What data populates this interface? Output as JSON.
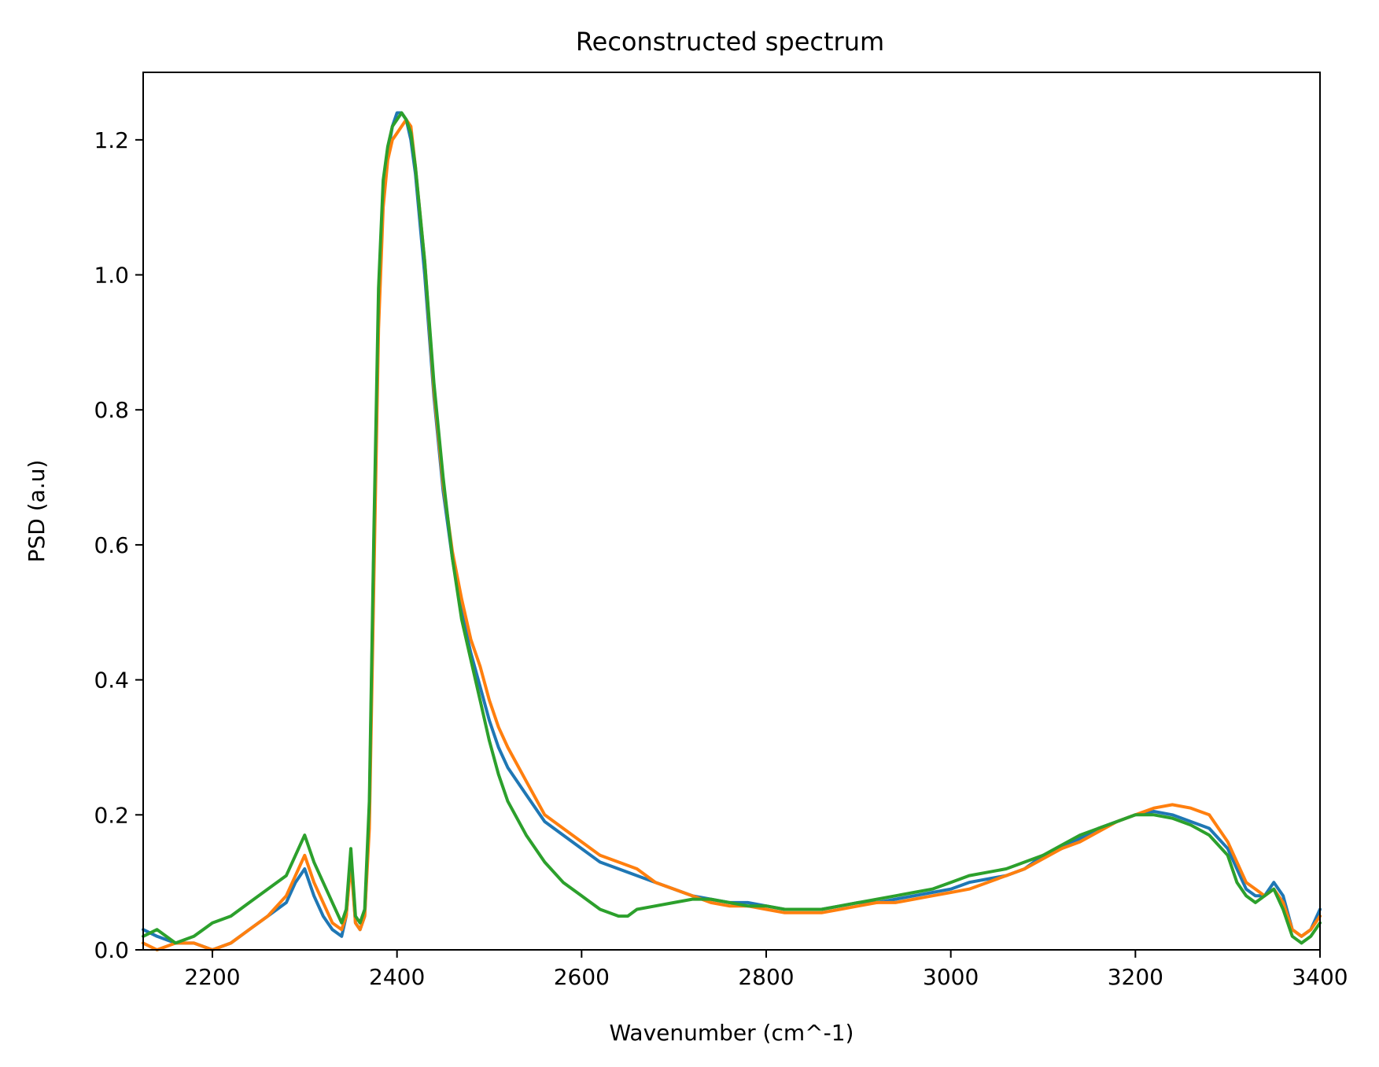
{
  "chart_data": {
    "type": "line",
    "title": "Reconstructed spectrum",
    "xlabel": "Wavenumber (cm^-1)",
    "ylabel": "PSD (a.u)",
    "xlim": [
      2125,
      3400
    ],
    "ylim": [
      0.0,
      1.3
    ],
    "xticks": [
      2200,
      2400,
      2600,
      2800,
      3000,
      3200,
      3400
    ],
    "xtick_labels": [
      "2200",
      "2400",
      "2600",
      "2800",
      "3000",
      "3200",
      "3400"
    ],
    "yticks": [
      0.0,
      0.2,
      0.4,
      0.6,
      0.8,
      1.0,
      1.2
    ],
    "ytick_labels": [
      "0.0",
      "0.2",
      "0.4",
      "0.6",
      "0.8",
      "1.0",
      "1.2"
    ],
    "grid": false,
    "legend": "none",
    "colors": [
      "#1f77b4",
      "#ff7f0e",
      "#2ca02c"
    ],
    "series": [
      {
        "x": [
          2125,
          2140,
          2160,
          2180,
          2200,
          2220,
          2240,
          2260,
          2280,
          2290,
          2300,
          2310,
          2320,
          2330,
          2340,
          2345,
          2350,
          2355,
          2360,
          2365,
          2370,
          2375,
          2380,
          2385,
          2390,
          2395,
          2400,
          2405,
          2410,
          2415,
          2420,
          2430,
          2440,
          2450,
          2460,
          2470,
          2480,
          2490,
          2500,
          2510,
          2520,
          2540,
          2560,
          2580,
          2600,
          2620,
          2640,
          2660,
          2680,
          2700,
          2720,
          2740,
          2760,
          2780,
          2800,
          2820,
          2840,
          2860,
          2880,
          2900,
          2920,
          2940,
          2960,
          2980,
          3000,
          3020,
          3040,
          3060,
          3080,
          3100,
          3120,
          3140,
          3160,
          3180,
          3200,
          3220,
          3240,
          3260,
          3280,
          3300,
          3310,
          3320,
          3330,
          3340,
          3350,
          3360,
          3370,
          3380,
          3390,
          3400
        ],
        "y": [
          0.03,
          0.02,
          0.01,
          0.01,
          0.0,
          0.01,
          0.03,
          0.05,
          0.07,
          0.1,
          0.12,
          0.08,
          0.05,
          0.03,
          0.02,
          0.05,
          0.14,
          0.04,
          0.03,
          0.05,
          0.2,
          0.6,
          0.95,
          1.12,
          1.18,
          1.22,
          1.24,
          1.24,
          1.23,
          1.2,
          1.15,
          1.0,
          0.82,
          0.68,
          0.58,
          0.5,
          0.44,
          0.39,
          0.34,
          0.3,
          0.27,
          0.23,
          0.19,
          0.17,
          0.15,
          0.13,
          0.12,
          0.11,
          0.1,
          0.09,
          0.08,
          0.075,
          0.07,
          0.07,
          0.065,
          0.06,
          0.06,
          0.06,
          0.065,
          0.07,
          0.07,
          0.075,
          0.08,
          0.085,
          0.09,
          0.1,
          0.105,
          0.11,
          0.12,
          0.14,
          0.15,
          0.165,
          0.18,
          0.19,
          0.2,
          0.205,
          0.2,
          0.19,
          0.18,
          0.15,
          0.12,
          0.09,
          0.08,
          0.08,
          0.1,
          0.08,
          0.03,
          0.02,
          0.03,
          0.06
        ]
      },
      {
        "x": [
          2125,
          2140,
          2160,
          2180,
          2200,
          2220,
          2240,
          2260,
          2280,
          2290,
          2300,
          2310,
          2320,
          2330,
          2340,
          2345,
          2350,
          2355,
          2360,
          2365,
          2370,
          2375,
          2380,
          2385,
          2390,
          2395,
          2400,
          2405,
          2410,
          2415,
          2420,
          2430,
          2440,
          2450,
          2460,
          2470,
          2480,
          2490,
          2500,
          2510,
          2520,
          2540,
          2560,
          2580,
          2600,
          2620,
          2640,
          2660,
          2680,
          2700,
          2720,
          2740,
          2760,
          2780,
          2800,
          2820,
          2840,
          2860,
          2880,
          2900,
          2920,
          2940,
          2960,
          2980,
          3000,
          3020,
          3040,
          3060,
          3080,
          3100,
          3120,
          3140,
          3160,
          3180,
          3200,
          3220,
          3240,
          3260,
          3280,
          3300,
          3310,
          3320,
          3330,
          3340,
          3350,
          3360,
          3370,
          3380,
          3390,
          3400
        ],
        "y": [
          0.01,
          0.0,
          0.01,
          0.01,
          0.0,
          0.01,
          0.03,
          0.05,
          0.08,
          0.11,
          0.14,
          0.1,
          0.07,
          0.04,
          0.03,
          0.05,
          0.13,
          0.04,
          0.03,
          0.05,
          0.18,
          0.55,
          0.92,
          1.1,
          1.17,
          1.2,
          1.21,
          1.22,
          1.23,
          1.22,
          1.16,
          1.02,
          0.83,
          0.69,
          0.59,
          0.52,
          0.46,
          0.42,
          0.37,
          0.33,
          0.3,
          0.25,
          0.2,
          0.18,
          0.16,
          0.14,
          0.13,
          0.12,
          0.1,
          0.09,
          0.08,
          0.07,
          0.065,
          0.065,
          0.06,
          0.055,
          0.055,
          0.055,
          0.06,
          0.065,
          0.07,
          0.07,
          0.075,
          0.08,
          0.085,
          0.09,
          0.1,
          0.11,
          0.12,
          0.135,
          0.15,
          0.16,
          0.175,
          0.19,
          0.2,
          0.21,
          0.215,
          0.21,
          0.2,
          0.16,
          0.13,
          0.1,
          0.09,
          0.08,
          0.09,
          0.07,
          0.03,
          0.02,
          0.03,
          0.05
        ]
      },
      {
        "x": [
          2125,
          2140,
          2160,
          2180,
          2200,
          2220,
          2240,
          2260,
          2280,
          2290,
          2300,
          2310,
          2320,
          2330,
          2340,
          2345,
          2350,
          2355,
          2360,
          2365,
          2370,
          2375,
          2380,
          2385,
          2390,
          2395,
          2400,
          2405,
          2410,
          2415,
          2420,
          2430,
          2440,
          2450,
          2460,
          2470,
          2480,
          2490,
          2500,
          2510,
          2520,
          2540,
          2560,
          2580,
          2600,
          2620,
          2640,
          2650,
          2660,
          2680,
          2700,
          2720,
          2740,
          2760,
          2780,
          2800,
          2820,
          2840,
          2860,
          2880,
          2900,
          2920,
          2940,
          2960,
          2980,
          3000,
          3020,
          3040,
          3060,
          3080,
          3100,
          3120,
          3140,
          3160,
          3180,
          3200,
          3220,
          3240,
          3260,
          3280,
          3300,
          3310,
          3320,
          3330,
          3340,
          3350,
          3360,
          3370,
          3380,
          3390,
          3400
        ],
        "y": [
          0.02,
          0.03,
          0.01,
          0.02,
          0.04,
          0.05,
          0.07,
          0.09,
          0.11,
          0.14,
          0.17,
          0.13,
          0.1,
          0.07,
          0.04,
          0.06,
          0.15,
          0.05,
          0.04,
          0.06,
          0.22,
          0.62,
          0.98,
          1.14,
          1.19,
          1.22,
          1.23,
          1.24,
          1.23,
          1.21,
          1.16,
          1.02,
          0.84,
          0.7,
          0.58,
          0.49,
          0.43,
          0.37,
          0.31,
          0.26,
          0.22,
          0.17,
          0.13,
          0.1,
          0.08,
          0.06,
          0.05,
          0.05,
          0.06,
          0.065,
          0.07,
          0.075,
          0.075,
          0.07,
          0.065,
          0.065,
          0.06,
          0.06,
          0.06,
          0.065,
          0.07,
          0.075,
          0.08,
          0.085,
          0.09,
          0.1,
          0.11,
          0.115,
          0.12,
          0.13,
          0.14,
          0.155,
          0.17,
          0.18,
          0.19,
          0.2,
          0.2,
          0.195,
          0.185,
          0.17,
          0.14,
          0.1,
          0.08,
          0.07,
          0.08,
          0.09,
          0.06,
          0.02,
          0.01,
          0.02,
          0.04
        ]
      }
    ]
  }
}
